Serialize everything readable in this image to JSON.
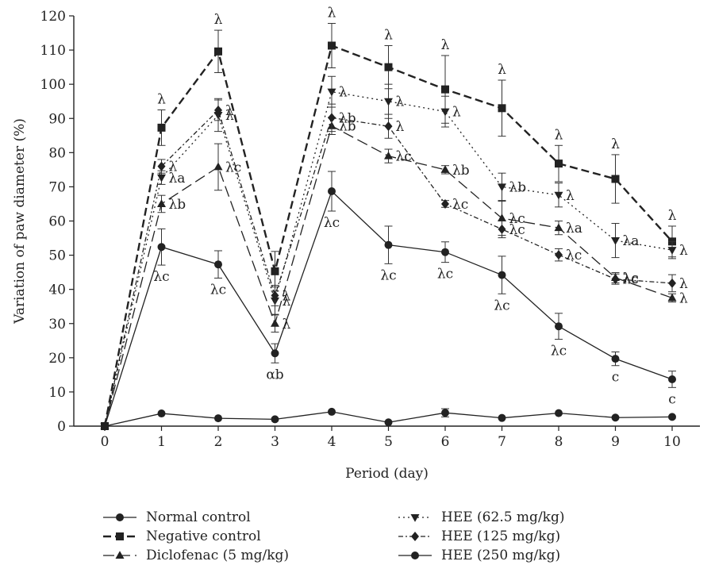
{
  "chart_data": {
    "type": "line",
    "title": "",
    "xlabel": "Period (day)",
    "ylabel": "Variation of paw diameter (%)",
    "xlim": [
      -0.5,
      10.5
    ],
    "ylim": [
      0,
      120
    ],
    "x_ticks": [
      0,
      1,
      2,
      3,
      4,
      5,
      6,
      7,
      8,
      9,
      10
    ],
    "y_ticks": [
      0,
      10,
      20,
      30,
      40,
      50,
      60,
      70,
      80,
      90,
      100,
      110,
      120
    ],
    "grid": false,
    "legend_position": "bottom",
    "x": [
      0,
      1,
      2,
      3,
      4,
      5,
      6,
      7,
      8,
      9,
      10
    ],
    "series": [
      {
        "name": "Normal control",
        "marker": "circle",
        "line_style": "solid",
        "values": [
          0,
          3.7,
          2.3,
          2.0,
          4.2,
          1.1,
          3.9,
          2.4,
          3.8,
          2.5,
          2.7
        ],
        "errors": [
          0,
          0,
          0,
          0,
          0,
          0,
          1.2,
          0,
          0,
          0,
          0
        ],
        "labels": [
          "",
          "",
          "",
          "",
          "",
          "",
          "",
          "",
          "",
          "",
          ""
        ]
      },
      {
        "name": "Negative control",
        "marker": "square",
        "line_style": "dashed",
        "values": [
          0,
          87.3,
          109.6,
          45.3,
          111.3,
          105.0,
          98.5,
          93.0,
          76.8,
          72.3,
          54.0
        ],
        "errors": [
          0,
          5.2,
          6.2,
          5.8,
          6.5,
          6.3,
          9.9,
          8.2,
          5.3,
          7.1,
          4.5
        ],
        "labels": [
          "",
          "λ",
          "λ",
          "",
          "λ",
          "λ",
          "λ",
          "λ",
          "λ",
          "λ",
          "λ"
        ]
      },
      {
        "name": "Diclofenac (5 mg/kg)",
        "marker": "triangle-up",
        "line_style": "longdash",
        "values": [
          0,
          65.0,
          75.8,
          30.0,
          87.8,
          79.0,
          75.0,
          60.8,
          58.0,
          43.4,
          37.5
        ],
        "errors": [
          0,
          2.5,
          6.8,
          2.5,
          2.5,
          2.0,
          1.2,
          5.0,
          2.0,
          1.5,
          1.2
        ],
        "labels": [
          "",
          "λb",
          "λc",
          "λ",
          "λb",
          "λc",
          "λb",
          "λc",
          "λa",
          "λc",
          "λ"
        ]
      },
      {
        "name": "HEE (62.5 mg/kg)",
        "marker": "triangle-down",
        "line_style": "dotted",
        "values": [
          0,
          72.7,
          91.0,
          36.7,
          97.8,
          95.0,
          92.0,
          70.0,
          67.6,
          54.3,
          51.5
        ],
        "errors": [
          0,
          2.0,
          4.8,
          4.0,
          4.5,
          5.0,
          4.5,
          4.0,
          3.5,
          5.0,
          2.5
        ],
        "labels": [
          "",
          "λa",
          "λ",
          "λ",
          "λ",
          "λ",
          "λ",
          "λb",
          "λ",
          "λa",
          "λ"
        ]
      },
      {
        "name": "HEE (125 mg/kg)",
        "marker": "diamond",
        "line_style": "dashdot",
        "values": [
          0,
          76.0,
          92.4,
          38.2,
          90.2,
          87.7,
          65.0,
          57.6,
          50.1,
          43.0,
          41.8
        ],
        "errors": [
          0,
          2.0,
          3.0,
          3.0,
          4.0,
          3.5,
          1.0,
          2.5,
          1.8,
          1.5,
          2.5
        ],
        "labels": [
          "",
          "λ",
          "λ",
          "λ",
          "λb",
          "λ",
          "λc",
          "λc",
          "λc",
          "λc",
          "λ"
        ]
      },
      {
        "name": "HEE (250 mg/kg)",
        "marker": "circle",
        "line_style": "solid",
        "values": [
          0,
          52.4,
          47.3,
          21.3,
          68.7,
          53.0,
          50.9,
          44.2,
          29.2,
          19.7,
          13.7
        ],
        "errors": [
          0,
          5.3,
          4.0,
          2.8,
          5.8,
          5.5,
          3.0,
          5.5,
          3.8,
          2.0,
          2.4
        ],
        "labels": [
          "",
          "λc",
          "λc",
          "αb",
          "λc",
          "λc",
          "λc",
          "λc",
          "λc",
          "c",
          "c"
        ]
      }
    ]
  }
}
